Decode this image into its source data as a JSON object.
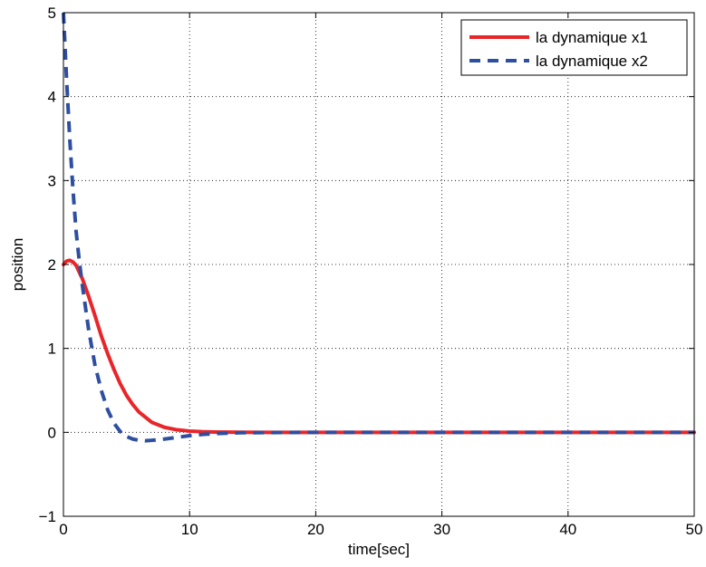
{
  "chart_data": {
    "type": "line",
    "title": "",
    "xlabel": "time[sec]",
    "ylabel": "position",
    "xlim": [
      0,
      50
    ],
    "ylim": [
      -1,
      5
    ],
    "xticks": [
      0,
      10,
      20,
      30,
      40,
      50
    ],
    "yticks": [
      -1,
      0,
      1,
      2,
      3,
      4,
      5
    ],
    "xtick_labels": [
      "0",
      "10",
      "20",
      "30",
      "40",
      "50"
    ],
    "ytick_labels": [
      "−1",
      "0",
      "1",
      "2",
      "3",
      "4",
      "5"
    ],
    "grid": true,
    "legend_position": "top-right",
    "series": [
      {
        "name": "la dynamique x1",
        "color": "#e8262a",
        "style": "solid",
        "x": [
          0,
          0.25,
          0.5,
          0.75,
          1,
          1.5,
          2,
          2.5,
          3,
          3.5,
          4,
          4.5,
          5,
          5.5,
          6,
          7,
          8,
          9,
          10,
          11,
          12,
          14,
          16,
          20,
          30,
          40,
          50
        ],
        "y": [
          2.0,
          2.04,
          2.05,
          2.03,
          1.99,
          1.83,
          1.62,
          1.39,
          1.15,
          0.94,
          0.75,
          0.58,
          0.44,
          0.33,
          0.24,
          0.12,
          0.06,
          0.03,
          0.015,
          0.007,
          0.003,
          0.001,
          0.0,
          0.0,
          0.0,
          0.0,
          0.0
        ]
      },
      {
        "name": "la dynamique x2",
        "color": "#2e4fa1",
        "style": "dashed",
        "x": [
          0,
          0.25,
          0.5,
          0.75,
          1,
          1.25,
          1.5,
          2,
          2.5,
          3,
          3.5,
          4,
          4.5,
          5,
          5.5,
          6,
          6.5,
          7,
          8,
          9,
          10,
          11,
          12,
          14,
          20,
          30,
          40,
          50
        ],
        "y": [
          5.0,
          4.2,
          3.5,
          2.9,
          2.4,
          2.05,
          1.75,
          1.22,
          0.8,
          0.5,
          0.27,
          0.11,
          0.01,
          -0.05,
          -0.08,
          -0.095,
          -0.1,
          -0.095,
          -0.08,
          -0.06,
          -0.04,
          -0.025,
          -0.015,
          -0.005,
          0.0,
          0.0,
          0.0,
          0.0
        ]
      }
    ]
  }
}
